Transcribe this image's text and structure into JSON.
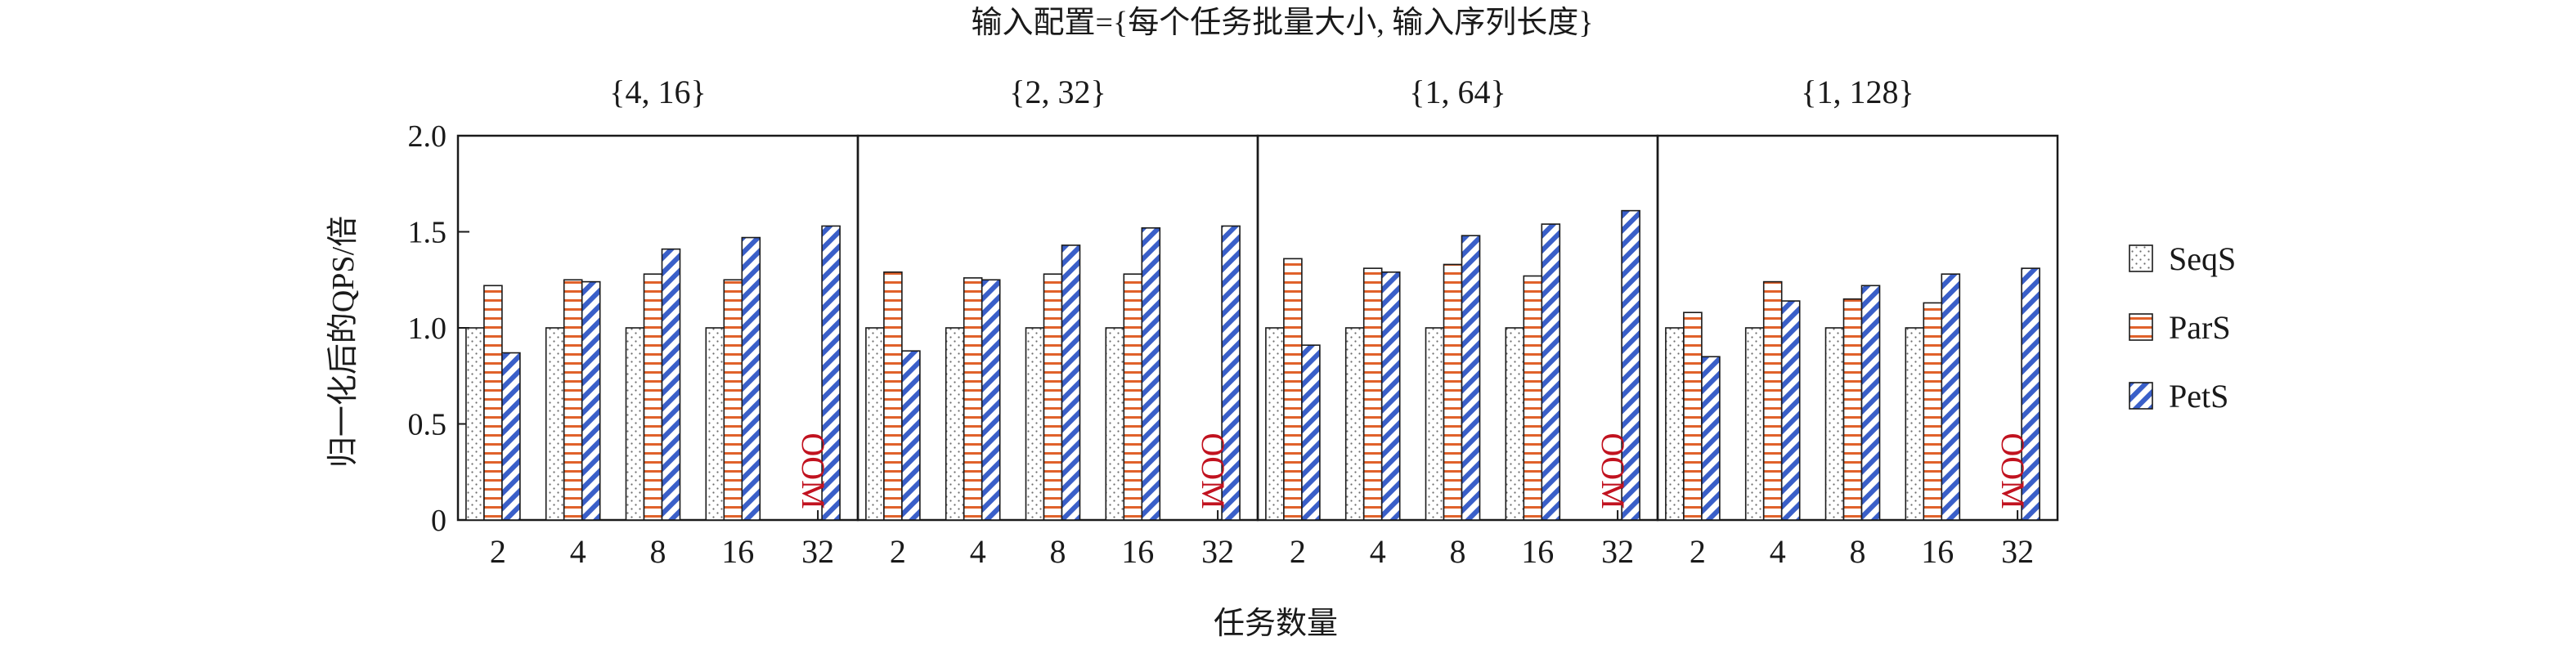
{
  "chart_data": {
    "type": "bar",
    "title": "输入配置={每个任务批量大小, 输入序列长度}",
    "xlabel": "任务数量",
    "ylabel": "归一化后的QPS/倍",
    "ylim": [
      0,
      2.0
    ],
    "yticks": [
      "0",
      "0.5",
      "1.0",
      "1.5",
      "2.0"
    ],
    "legend_position": "right",
    "oom_label": "OOM",
    "colors": {
      "SeqS": "#7f7f7f",
      "ParS": "#e0622b",
      "PetS": "#3a5fc8",
      "oom": "#c1121f"
    },
    "series": [
      {
        "name": "SeqS"
      },
      {
        "name": "ParS"
      },
      {
        "name": "PetS"
      }
    ],
    "panels": [
      {
        "label": "{4, 16}",
        "categories": [
          "2",
          "4",
          "8",
          "16",
          "32"
        ],
        "values": {
          "SeqS": [
            1.0,
            1.0,
            1.0,
            1.0,
            null
          ],
          "ParS": [
            1.22,
            1.25,
            1.28,
            1.25,
            null
          ],
          "PetS": [
            0.87,
            1.24,
            1.41,
            1.47,
            1.53
          ]
        },
        "oom": [
          false,
          false,
          false,
          false,
          true
        ]
      },
      {
        "label": "{2, 32}",
        "categories": [
          "2",
          "4",
          "8",
          "16",
          "32"
        ],
        "values": {
          "SeqS": [
            1.0,
            1.0,
            1.0,
            1.0,
            null
          ],
          "ParS": [
            1.29,
            1.26,
            1.28,
            1.28,
            null
          ],
          "PetS": [
            0.88,
            1.25,
            1.43,
            1.52,
            1.53
          ]
        },
        "oom": [
          false,
          false,
          false,
          false,
          true
        ]
      },
      {
        "label": "{1, 64}",
        "categories": [
          "2",
          "4",
          "8",
          "16",
          "32"
        ],
        "values": {
          "SeqS": [
            1.0,
            1.0,
            1.0,
            1.0,
            null
          ],
          "ParS": [
            1.36,
            1.31,
            1.33,
            1.27,
            null
          ],
          "PetS": [
            0.91,
            1.29,
            1.48,
            1.54,
            1.61
          ]
        },
        "oom": [
          false,
          false,
          false,
          false,
          true
        ]
      },
      {
        "label": "{1, 128}",
        "categories": [
          "2",
          "4",
          "8",
          "16",
          "32"
        ],
        "values": {
          "SeqS": [
            1.0,
            1.0,
            1.0,
            1.0,
            null
          ],
          "ParS": [
            1.08,
            1.24,
            1.15,
            1.13,
            null
          ],
          "PetS": [
            0.85,
            1.14,
            1.22,
            1.28,
            1.31
          ]
        },
        "oom": [
          false,
          false,
          false,
          false,
          true
        ]
      }
    ]
  }
}
